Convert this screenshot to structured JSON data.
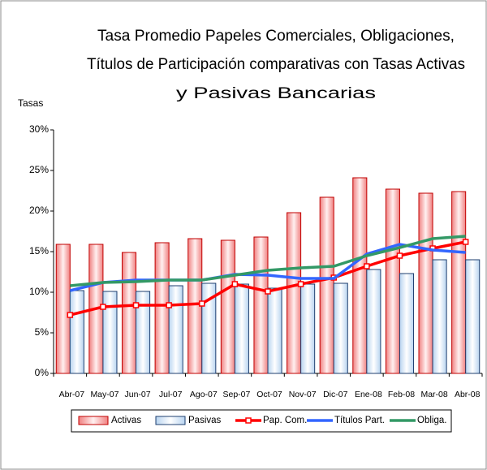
{
  "chart_data": {
    "type": "bar",
    "title": [
      "Tasa Promedio Papeles Comerciales, Obligaciones,",
      "Títulos de Participación comparativas con Tasas Activas",
      "y Pasivas Bancarias"
    ],
    "y_label": "Tasas",
    "categories": [
      "Abr-07",
      "May-07",
      "Jun-07",
      "Jul-07",
      "Ago-07",
      "Sep-07",
      "Oct-07",
      "Nov-07",
      "Dic-07",
      "Ene-08",
      "Feb-08",
      "Mar-08",
      "Abr-08"
    ],
    "series": [
      {
        "name": "Activas",
        "type": "bar",
        "color": "#e05050",
        "values": [
          15.9,
          15.9,
          14.9,
          16.1,
          16.6,
          16.4,
          16.8,
          19.8,
          21.7,
          24.1,
          22.7,
          22.2,
          22.4
        ]
      },
      {
        "name": "Pasivas",
        "type": "bar",
        "color": "#b8d4f0",
        "values": [
          10.2,
          10.1,
          10.1,
          10.8,
          11.1,
          11.0,
          10.5,
          11.0,
          11.1,
          12.8,
          12.3,
          14.0,
          14.0
        ]
      },
      {
        "name": "Pap. Com.",
        "type": "line",
        "color": "#ff0000",
        "values": [
          7.2,
          8.2,
          8.4,
          8.4,
          8.6,
          11.0,
          10.1,
          11.0,
          11.8,
          13.2,
          14.5,
          15.4,
          16.2
        ]
      },
      {
        "name": "Títulos Part.",
        "type": "line",
        "color": "#3366ff",
        "values": [
          10.2,
          11.2,
          11.5,
          11.5,
          11.5,
          12.2,
          12.1,
          11.7,
          11.7,
          14.7,
          15.9,
          15.2,
          14.9
        ]
      },
      {
        "name": "Obliga.",
        "type": "line",
        "color": "#339966",
        "values": [
          10.8,
          11.2,
          11.3,
          11.5,
          11.5,
          12.1,
          12.7,
          13.0,
          13.2,
          14.5,
          15.5,
          16.6,
          16.9
        ]
      }
    ],
    "ylim": [
      0,
      30
    ],
    "yticks": [
      {
        "value": 0,
        "label": "0%"
      },
      {
        "value": 5,
        "label": "5%"
      },
      {
        "value": 10,
        "label": "10%"
      },
      {
        "value": 15,
        "label": "15%"
      },
      {
        "value": 20,
        "label": "20%"
      },
      {
        "value": 25,
        "label": "25%"
      },
      {
        "value": 30,
        "label": "30%"
      }
    ],
    "legend": "bottom"
  }
}
